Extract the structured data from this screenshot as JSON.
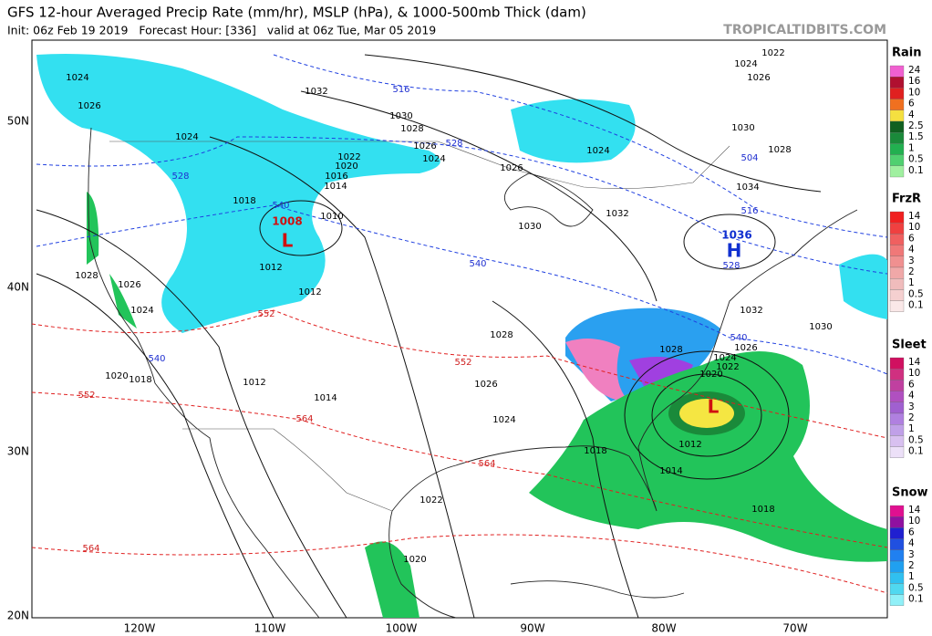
{
  "header": {
    "title": "GFS 12-hour Averaged Precip Rate (mm/hr), MSLP (hPa), & 1000-500mb Thick (dam)",
    "subtitle": "Init: 06z Feb 19 2019   Forecast Hour: [336]   valid at 06z Tue, Mar 05 2019",
    "watermark": "TROPICALTIDBITS.COM"
  },
  "map": {
    "lat_labels": [
      "50N",
      "40N",
      "30N",
      "20N"
    ],
    "lon_labels": [
      "120W",
      "110W",
      "100W",
      "90W",
      "80W",
      "70W"
    ],
    "pressure_labels": [
      "1024",
      "1026",
      "1032",
      "1030",
      "1028",
      "1026",
      "1024",
      "1024",
      "1022",
      "1020",
      "1016",
      "1014",
      "1018",
      "1010",
      "1012",
      "1012",
      "1028",
      "1026",
      "1024",
      "1020",
      "1018",
      "1012",
      "1014",
      "1028",
      "1026",
      "1024",
      "1026",
      "1030",
      "1032",
      "1024",
      "1022",
      "1024",
      "1026",
      "1030",
      "1028",
      "1034",
      "1032",
      "1030",
      "1028",
      "1026",
      "1024",
      "1022",
      "1020",
      "1012",
      "1014",
      "1018",
      "1018",
      "1022",
      "1020"
    ],
    "thickness_labels": [
      "516",
      "528",
      "528",
      "540",
      "540",
      "552",
      "552",
      "552",
      "564",
      "564",
      "564",
      "504",
      "516",
      "528",
      "540",
      "540"
    ],
    "centers": [
      {
        "symbol": "L",
        "value": "1008"
      },
      {
        "symbol": "H",
        "value": "1036"
      },
      {
        "symbol": "L"
      }
    ]
  },
  "legend": [
    {
      "title": "Rain",
      "levels": [
        "24",
        "16",
        "10",
        "6",
        "4",
        "2.5",
        "1.5",
        "1",
        "0.5",
        "0.1"
      ]
    },
    {
      "title": "FrzR",
      "levels": [
        "14",
        "10",
        "6",
        "4",
        "3",
        "2",
        "1",
        "0.5",
        "0.1"
      ]
    },
    {
      "title": "Sleet",
      "levels": [
        "14",
        "10",
        "6",
        "4",
        "3",
        "2",
        "1",
        "0.5",
        "0.1"
      ]
    },
    {
      "title": "Snow",
      "levels": [
        "14",
        "10",
        "6",
        "4",
        "3",
        "2",
        "1",
        "0.5",
        "0.1"
      ]
    }
  ]
}
